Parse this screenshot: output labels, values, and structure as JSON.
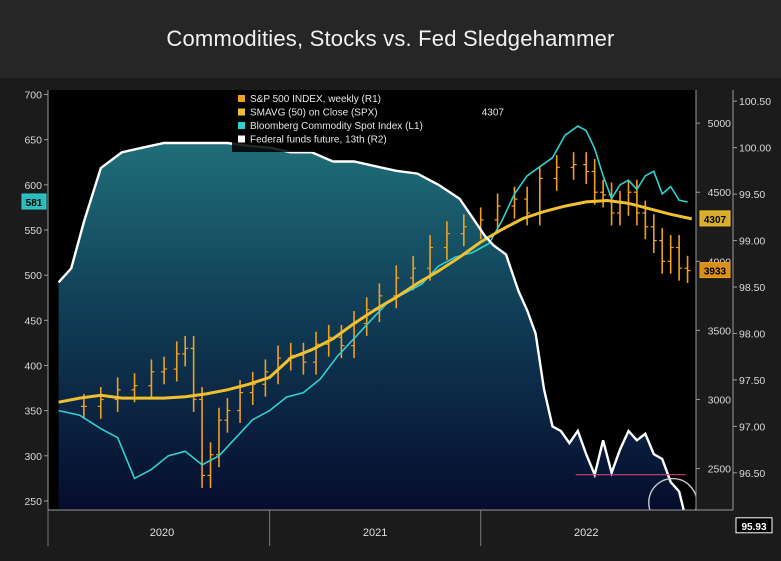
{
  "title": "Commodities, Stocks vs. Fed Sledgehammer",
  "chart_data": {
    "type": "line",
    "x_axis": {
      "tick_labels": [
        "2020",
        "2021",
        "2022"
      ]
    },
    "y_axes": {
      "L1": {
        "ticks": [
          250,
          300,
          350,
          400,
          450,
          500,
          550,
          600,
          650,
          700
        ],
        "range": [
          240,
          705
        ]
      },
      "R1": {
        "ticks": [
          2500,
          3000,
          3500,
          4000,
          4500,
          5000
        ],
        "range": [
          2200,
          5240
        ]
      },
      "R2": {
        "ticks": [
          "96.50",
          "97.00",
          "97.50",
          "98.00",
          "98.50",
          "99.00",
          "99.50",
          "100.00",
          "100.50"
        ],
        "range": [
          96.1,
          100.62
        ]
      }
    },
    "legend": {
      "position": "top-center",
      "items": [
        {
          "label": "S&P 500 INDEX, weekly (R1)",
          "color": "#f0a020",
          "value": ""
        },
        {
          "label": "SMAVG (50)  on Close (SPX)",
          "color": "#f0c030",
          "value": "4307"
        },
        {
          "label": "Bloomberg Commodity Spot Index (L1)",
          "color": "#30d0d0",
          "value": ""
        },
        {
          "label": "Federal funds future, 13th (R2)",
          "color": "#ffffff",
          "value": ""
        }
      ]
    },
    "last_value_badges": {
      "commodity": {
        "text": "581",
        "color": "#30d0d0"
      },
      "sma": {
        "text": "4307",
        "color": "#f0c030"
      },
      "spx": {
        "text": "3933",
        "color": "#f0a020"
      },
      "fed": {
        "text": "95.93",
        "color": "#ffffff"
      }
    },
    "series": [
      {
        "name": "S&P 500 INDEX, weekly (R1)",
        "axis": "R1",
        "style": "ohlc-bars",
        "color": "#f0a020",
        "x": [
          2019.62,
          2019.7,
          2019.78,
          2019.86,
          2019.94,
          2020.0,
          2020.06,
          2020.1,
          2020.14,
          2020.18,
          2020.22,
          2020.26,
          2020.3,
          2020.36,
          2020.42,
          2020.48,
          2020.54,
          2020.6,
          2020.66,
          2020.72,
          2020.78,
          2020.84,
          2020.9,
          2020.96,
          2021.02,
          2021.1,
          2021.18,
          2021.26,
          2021.34,
          2021.42,
          2021.5,
          2021.58,
          2021.66,
          2021.72,
          2021.78,
          2021.86,
          2021.94,
          2022.0,
          2022.04,
          2022.08,
          2022.12,
          2022.16,
          2022.2,
          2022.24,
          2022.28,
          2022.32,
          2022.36,
          2022.4,
          2022.44,
          2022.48
        ],
        "values": [
          2950,
          3000,
          3070,
          3100,
          3200,
          3220,
          3330,
          3370,
          3000,
          2450,
          2600,
          2850,
          2920,
          3050,
          3110,
          3200,
          3300,
          3320,
          3270,
          3400,
          3450,
          3390,
          3550,
          3650,
          3750,
          3880,
          3950,
          4100,
          4200,
          4250,
          4300,
          4400,
          4450,
          4350,
          4600,
          4680,
          4700,
          4650,
          4500,
          4480,
          4350,
          4420,
          4500,
          4350,
          4250,
          4150,
          4000,
          4100,
          3950,
          3933
        ]
      },
      {
        "name": "SMAVG (50)  on Close (SPX)",
        "axis": "R1",
        "style": "line",
        "color": "#f0c030",
        "x": [
          2019.5,
          2019.6,
          2019.7,
          2019.8,
          2020.0,
          2020.1,
          2020.2,
          2020.3,
          2020.4,
          2020.5,
          2020.6,
          2020.7,
          2020.8,
          2020.9,
          2021.0,
          2021.1,
          2021.2,
          2021.3,
          2021.4,
          2021.5,
          2021.6,
          2021.7,
          2021.8,
          2021.9,
          2022.0,
          2022.1,
          2022.2,
          2022.3,
          2022.4,
          2022.5
        ],
        "values": [
          2980,
          3010,
          3030,
          3010,
          3010,
          3020,
          3040,
          3070,
          3110,
          3160,
          3300,
          3360,
          3440,
          3550,
          3650,
          3740,
          3840,
          3930,
          4030,
          4140,
          4230,
          4310,
          4360,
          4400,
          4430,
          4440,
          4420,
          4380,
          4340,
          4307
        ]
      },
      {
        "name": "Bloomberg Commodity Spot Index (L1)",
        "axis": "L1",
        "style": "line",
        "color": "#30d0d0",
        "x": [
          2019.5,
          2019.6,
          2019.7,
          2019.78,
          2019.86,
          2019.94,
          2020.02,
          2020.1,
          2020.18,
          2020.26,
          2020.34,
          2020.42,
          2020.5,
          2020.58,
          2020.66,
          2020.74,
          2020.82,
          2020.9,
          2020.98,
          2021.06,
          2021.14,
          2021.22,
          2021.3,
          2021.38,
          2021.46,
          2021.54,
          2021.6,
          2021.66,
          2021.72,
          2021.78,
          2021.84,
          2021.9,
          2021.96,
          2022.0,
          2022.04,
          2022.08,
          2022.12,
          2022.16,
          2022.2,
          2022.24,
          2022.28,
          2022.32,
          2022.36,
          2022.4,
          2022.44,
          2022.48
        ],
        "values": [
          350,
          345,
          330,
          320,
          275,
          285,
          300,
          305,
          290,
          300,
          320,
          340,
          350,
          365,
          370,
          385,
          410,
          430,
          450,
          470,
          480,
          490,
          510,
          520,
          525,
          535,
          560,
          590,
          610,
          620,
          630,
          655,
          665,
          660,
          640,
          610,
          585,
          600,
          605,
          595,
          610,
          615,
          590,
          598,
          583,
          581
        ]
      },
      {
        "name": "Federal funds future, 13th (R2)",
        "axis": "R2",
        "style": "area-line",
        "color": "#ffffff",
        "x": [
          2019.5,
          2019.56,
          2019.62,
          2019.7,
          2019.8,
          2019.9,
          2020.0,
          2020.1,
          2020.2,
          2020.3,
          2020.4,
          2020.5,
          2020.6,
          2020.7,
          2020.8,
          2020.9,
          2021.0,
          2021.1,
          2021.2,
          2021.3,
          2021.4,
          2021.46,
          2021.52,
          2021.56,
          2021.62,
          2021.68,
          2021.72,
          2021.76,
          2021.8,
          2021.84,
          2021.88,
          2021.92,
          2021.96,
          2022.0,
          2022.04,
          2022.08,
          2022.12,
          2022.16,
          2022.2,
          2022.24,
          2022.28,
          2022.32,
          2022.36,
          2022.4,
          2022.44,
          2022.48
        ],
        "values": [
          98.55,
          98.7,
          99.2,
          99.78,
          99.95,
          100.0,
          100.05,
          100.05,
          100.05,
          100.05,
          100.02,
          100.0,
          99.95,
          99.95,
          99.85,
          99.85,
          99.8,
          99.75,
          99.72,
          99.6,
          99.45,
          99.25,
          99.05,
          98.95,
          98.85,
          98.45,
          98.25,
          98.0,
          97.4,
          97.0,
          96.95,
          96.82,
          96.95,
          96.7,
          96.48,
          96.85,
          96.5,
          96.75,
          96.95,
          96.85,
          96.92,
          96.7,
          96.65,
          96.4,
          96.3,
          95.93
        ]
      }
    ],
    "annotations": [
      {
        "type": "horizontal-line",
        "axis": "R2",
        "value": 96.48,
        "x_from": 2021.95,
        "x_to": 2022.47,
        "color": "#d0407a"
      },
      {
        "type": "circle",
        "axis": "R2",
        "x": 2022.41,
        "y": 96.18,
        "color": "#c8c8c8"
      }
    ]
  }
}
